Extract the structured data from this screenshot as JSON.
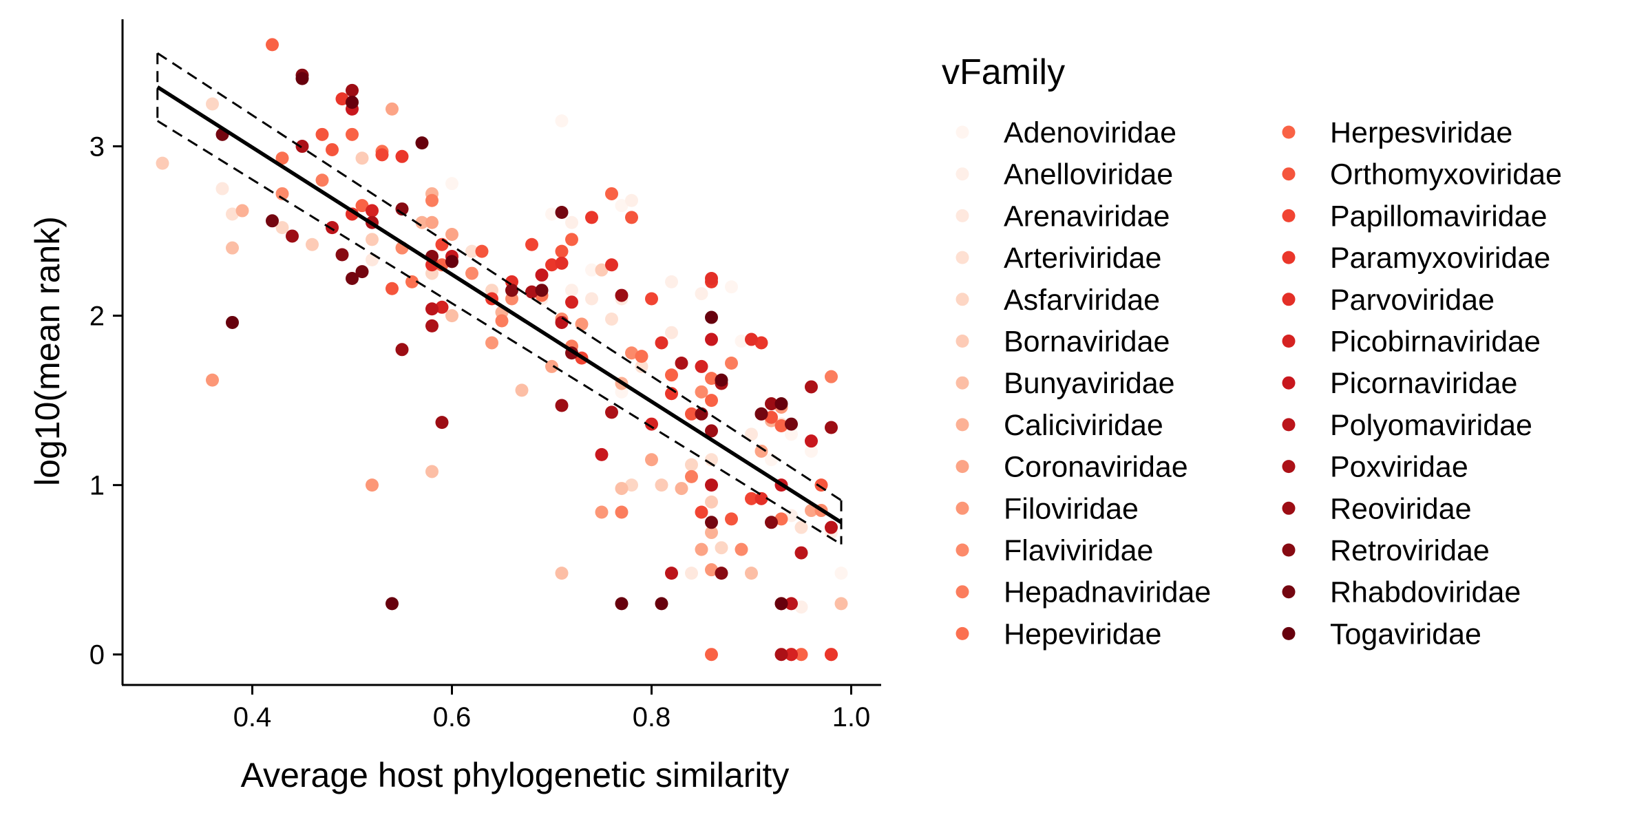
{
  "chart_data": {
    "type": "scatter",
    "xlabel": "Average host phylogenetic similarity",
    "ylabel": "log10(mean rank)",
    "xlim": [
      0.27,
      1.03
    ],
    "ylim": [
      -0.18,
      3.75
    ],
    "x_ticks": [
      "0.4",
      "0.6",
      "0.8",
      "1.0"
    ],
    "x_tick_values": [
      0.4,
      0.6,
      0.8,
      1.0
    ],
    "y_ticks": [
      "0",
      "1",
      "2",
      "3"
    ],
    "y_tick_values": [
      0,
      1,
      2,
      3
    ],
    "grid": false,
    "legend_position": "right",
    "legend_title": "vFamily",
    "fit_line": {
      "x": [
        0.305,
        0.99
      ],
      "y": [
        3.35,
        0.78
      ],
      "color": "#000000"
    },
    "confidence_band": {
      "x": [
        0.305,
        0.99
      ],
      "upper": [
        3.55,
        0.91
      ],
      "lower": [
        3.15,
        0.65
      ],
      "style": "dashed"
    },
    "families": [
      {
        "name": "Adenoviridae",
        "color": "#fff5f0"
      },
      {
        "name": "Anelloviridae",
        "color": "#feefe8"
      },
      {
        "name": "Arenaviridae",
        "color": "#fee8de"
      },
      {
        "name": "Arteriviridae",
        "color": "#fee0d2"
      },
      {
        "name": "Asfarviridae",
        "color": "#fdd6c4"
      },
      {
        "name": "Bornaviridae",
        "color": "#fdcbb6"
      },
      {
        "name": "Bunyaviridae",
        "color": "#fcbea5"
      },
      {
        "name": "Caliciviridae",
        "color": "#fcb195"
      },
      {
        "name": "Coronaviridae",
        "color": "#fca486"
      },
      {
        "name": "Filoviridae",
        "color": "#fc9777"
      },
      {
        "name": "Flaviviridae",
        "color": "#fc8a6a"
      },
      {
        "name": "Hepadnaviridae",
        "color": "#fb7d5d"
      },
      {
        "name": "Hepeviridae",
        "color": "#fb7050"
      },
      {
        "name": "Herpesviridae",
        "color": "#f96245"
      },
      {
        "name": "Orthomyxoviridae",
        "color": "#f5553c"
      },
      {
        "name": "Papillomaviridae",
        "color": "#f14432"
      },
      {
        "name": "Paramyxoviridae",
        "color": "#ea362a"
      },
      {
        "name": "Parvoviridae",
        "color": "#e32f27"
      },
      {
        "name": "Picobirnaviridae",
        "color": "#d52221"
      },
      {
        "name": "Picornaviridae",
        "color": "#c8171d"
      },
      {
        "name": "Polyomaviridae",
        "color": "#bb141a"
      },
      {
        "name": "Poxviridae",
        "color": "#ac1117"
      },
      {
        "name": "Reoviridae",
        "color": "#9c0d14"
      },
      {
        "name": "Retroviridae",
        "color": "#870a12"
      },
      {
        "name": "Rhabdoviridae",
        "color": "#740610"
      },
      {
        "name": "Togaviridae",
        "color": "#67000d"
      }
    ],
    "series": [
      {
        "name": "Adenoviridae",
        "points": [
          [
            0.71,
            3.15
          ],
          [
            0.7,
            2.6
          ],
          [
            0.77,
            2.65
          ],
          [
            0.74,
            2.27
          ],
          [
            0.88,
            2.17
          ],
          [
            0.77,
            1.55
          ],
          [
            0.89,
            1.85
          ],
          [
            0.94,
            1.3
          ],
          [
            0.96,
            1.2
          ],
          [
            0.99,
            0.48
          ],
          [
            0.6,
            2.78
          ],
          [
            0.92,
            1.15
          ]
        ]
      },
      {
        "name": "Anelloviridae",
        "points": [
          [
            0.78,
            2.68
          ],
          [
            0.72,
            2.15
          ],
          [
            0.82,
            2.2
          ],
          [
            0.85,
            2.13
          ],
          [
            0.94,
            0.82
          ],
          [
            0.95,
            0.28
          ],
          [
            0.98,
            0.72
          ],
          [
            0.69,
            2.1
          ],
          [
            0.72,
            2.55
          ]
        ]
      },
      {
        "name": "Arenaviridae",
        "points": [
          [
            0.37,
            2.75
          ],
          [
            0.52,
            2.33
          ],
          [
            0.74,
            2.1
          ],
          [
            0.82,
            1.9
          ],
          [
            0.9,
            1.3
          ],
          [
            0.94,
            0.3
          ],
          [
            0.84,
            0.48
          ],
          [
            0.77,
            2.1
          ]
        ]
      },
      {
        "name": "Arteriviridae",
        "points": [
          [
            0.38,
            2.6
          ],
          [
            0.59,
            2.42
          ],
          [
            0.62,
            2.38
          ],
          [
            0.79,
            1.7
          ],
          [
            0.86,
            1.15
          ],
          [
            0.93,
            1.36
          ],
          [
            0.76,
            1.98
          ],
          [
            0.95,
            0.75
          ]
        ]
      },
      {
        "name": "Asfarviridae",
        "points": [
          [
            0.36,
            3.25
          ],
          [
            0.43,
            2.52
          ],
          [
            0.58,
            2.25
          ],
          [
            0.64,
            2.15
          ],
          [
            0.78,
            1.0
          ],
          [
            0.84,
            1.12
          ],
          [
            0.87,
            0.63
          ]
        ]
      },
      {
        "name": "Bornaviridae",
        "points": [
          [
            0.31,
            2.9
          ],
          [
            0.51,
            2.93
          ],
          [
            0.46,
            2.42
          ],
          [
            0.52,
            2.45
          ],
          [
            0.75,
            2.27
          ],
          [
            0.81,
            1.0
          ],
          [
            0.86,
            0.9
          ],
          [
            0.95,
            0.0
          ]
        ]
      },
      {
        "name": "Bunyaviridae",
        "points": [
          [
            0.38,
            2.4
          ],
          [
            0.58,
            1.08
          ],
          [
            0.6,
            2.0
          ],
          [
            0.71,
            0.48
          ],
          [
            0.77,
            0.98
          ],
          [
            0.9,
            0.48
          ],
          [
            0.99,
            0.3
          ],
          [
            0.67,
            1.56
          ]
        ]
      },
      {
        "name": "Caliciviridae",
        "points": [
          [
            0.39,
            2.62
          ],
          [
            0.57,
            2.55
          ],
          [
            0.58,
            2.72
          ],
          [
            0.65,
            2.02
          ],
          [
            0.77,
            1.6
          ],
          [
            0.83,
            0.98
          ],
          [
            0.86,
            0.72
          ],
          [
            0.92,
            1.38
          ]
        ]
      },
      {
        "name": "Coronaviridae",
        "points": [
          [
            0.54,
            3.22
          ],
          [
            0.58,
            2.55
          ],
          [
            0.6,
            2.48
          ],
          [
            0.7,
            1.7
          ],
          [
            0.8,
            1.15
          ],
          [
            0.85,
            0.62
          ],
          [
            0.91,
            1.2
          ],
          [
            0.96,
            0.85
          ]
        ]
      },
      {
        "name": "Filoviridae",
        "points": [
          [
            0.36,
            1.62
          ],
          [
            0.52,
            1.0
          ],
          [
            0.64,
            1.84
          ],
          [
            0.73,
            1.95
          ],
          [
            0.75,
            0.84
          ],
          [
            0.86,
            0.5
          ],
          [
            0.93,
            1.46
          ]
        ]
      },
      {
        "name": "Flaviviridae",
        "points": [
          [
            0.43,
            2.72
          ],
          [
            0.48,
            2.52
          ],
          [
            0.55,
            2.4
          ],
          [
            0.62,
            2.25
          ],
          [
            0.71,
            1.98
          ],
          [
            0.78,
            1.78
          ],
          [
            0.85,
            1.55
          ],
          [
            0.89,
            0.62
          ],
          [
            0.97,
            0.85
          ],
          [
            0.66,
            2.1
          ]
        ]
      },
      {
        "name": "Hepadnaviridae",
        "points": [
          [
            0.47,
            2.8
          ],
          [
            0.58,
            2.68
          ],
          [
            0.65,
            1.97
          ],
          [
            0.72,
            1.82
          ],
          [
            0.77,
            0.84
          ],
          [
            0.84,
            1.05
          ],
          [
            0.88,
            1.72
          ],
          [
            0.98,
            1.64
          ]
        ]
      },
      {
        "name": "Hepeviridae",
        "points": [
          [
            0.43,
            2.93
          ],
          [
            0.5,
            2.6
          ],
          [
            0.53,
            2.97
          ],
          [
            0.56,
            2.2
          ],
          [
            0.69,
            2.12
          ],
          [
            0.79,
            1.76
          ],
          [
            0.86,
            1.63
          ],
          [
            0.93,
            0.8
          ],
          [
            0.98,
            0.0
          ]
        ]
      },
      {
        "name": "Herpesviridae",
        "points": [
          [
            0.42,
            3.6
          ],
          [
            0.5,
            3.07
          ],
          [
            0.51,
            2.65
          ],
          [
            0.59,
            2.3
          ],
          [
            0.72,
            2.45
          ],
          [
            0.76,
            2.72
          ],
          [
            0.82,
            1.65
          ],
          [
            0.86,
            1.5
          ],
          [
            0.93,
            1.35
          ],
          [
            0.86,
            0.0
          ],
          [
            0.95,
            0.0
          ]
        ]
      },
      {
        "name": "Orthomyxoviridae",
        "points": [
          [
            0.47,
            3.07
          ],
          [
            0.48,
            2.98
          ],
          [
            0.54,
            2.16
          ],
          [
            0.63,
            2.38
          ],
          [
            0.71,
            2.38
          ],
          [
            0.78,
            2.58
          ],
          [
            0.84,
            1.42
          ],
          [
            0.88,
            0.8
          ],
          [
            0.92,
            1.4
          ],
          [
            0.97,
            1.0
          ]
        ]
      },
      {
        "name": "Papillomaviridae",
        "points": [
          [
            0.53,
            2.95
          ],
          [
            0.59,
            2.42
          ],
          [
            0.68,
            2.42
          ],
          [
            0.73,
            1.75
          ],
          [
            0.8,
            2.1
          ],
          [
            0.85,
            0.84
          ],
          [
            0.9,
            0.92
          ],
          [
            0.94,
            0.0
          ]
        ]
      },
      {
        "name": "Paramyxoviridae",
        "points": [
          [
            0.49,
            3.28
          ],
          [
            0.55,
            2.94
          ],
          [
            0.64,
            2.1
          ],
          [
            0.7,
            2.3
          ],
          [
            0.74,
            2.58
          ],
          [
            0.82,
            1.54
          ],
          [
            0.86,
            2.2
          ],
          [
            0.91,
            1.84
          ],
          [
            0.98,
            0.0
          ]
        ]
      },
      {
        "name": "Parvoviridae",
        "points": [
          [
            0.5,
            2.6
          ],
          [
            0.58,
            2.3
          ],
          [
            0.66,
            2.2
          ],
          [
            0.71,
            2.31
          ],
          [
            0.76,
            2.3
          ],
          [
            0.81,
            1.84
          ],
          [
            0.86,
            2.22
          ],
          [
            0.9,
            1.86
          ],
          [
            0.91,
            0.92
          ]
        ]
      },
      {
        "name": "Picobirnaviridae",
        "points": [
          [
            0.52,
            2.62
          ],
          [
            0.59,
            2.05
          ],
          [
            0.72,
            2.08
          ],
          [
            0.8,
            1.36
          ],
          [
            0.85,
            1.7
          ],
          [
            0.93,
            0.3
          ],
          [
            0.94,
            0.0
          ]
        ]
      },
      {
        "name": "Picornaviridae",
        "points": [
          [
            0.5,
            3.22
          ],
          [
            0.6,
            2.35
          ],
          [
            0.69,
            2.24
          ],
          [
            0.75,
            1.18
          ],
          [
            0.86,
            1.86
          ],
          [
            0.91,
            1.42
          ],
          [
            0.96,
            1.26
          ],
          [
            0.93,
            1.0
          ]
        ]
      },
      {
        "name": "Polyomaviridae",
        "points": [
          [
            0.48,
            2.52
          ],
          [
            0.58,
            2.04
          ],
          [
            0.71,
            1.96
          ],
          [
            0.82,
            0.48
          ],
          [
            0.86,
            1.0
          ],
          [
            0.95,
            0.6
          ],
          [
            0.98,
            0.75
          ],
          [
            0.94,
            0.3
          ]
        ]
      },
      {
        "name": "Poxviridae",
        "points": [
          [
            0.45,
            3.0
          ],
          [
            0.52,
            2.55
          ],
          [
            0.58,
            1.94
          ],
          [
            0.68,
            2.14
          ],
          [
            0.76,
            1.43
          ],
          [
            0.83,
            1.72
          ],
          [
            0.87,
            1.6
          ],
          [
            0.93,
            0.0
          ],
          [
            0.96,
            1.58
          ]
        ]
      },
      {
        "name": "Reoviridae",
        "points": [
          [
            0.44,
            2.47
          ],
          [
            0.5,
            3.33
          ],
          [
            0.55,
            1.8
          ],
          [
            0.59,
            1.37
          ],
          [
            0.71,
            1.47
          ],
          [
            0.77,
            2.12
          ],
          [
            0.86,
            1.32
          ],
          [
            0.92,
            1.48
          ],
          [
            0.98,
            1.34
          ]
        ]
      },
      {
        "name": "Retroviridae",
        "points": [
          [
            0.45,
            3.42
          ],
          [
            0.49,
            2.36
          ],
          [
            0.55,
            2.63
          ],
          [
            0.58,
            2.35
          ],
          [
            0.66,
            2.15
          ],
          [
            0.72,
            1.78
          ],
          [
            0.85,
            1.42
          ],
          [
            0.87,
            0.48
          ],
          [
            0.92,
            0.78
          ]
        ]
      },
      {
        "name": "Rhabdoviridae",
        "points": [
          [
            0.37,
            3.07
          ],
          [
            0.42,
            2.56
          ],
          [
            0.5,
            2.22
          ],
          [
            0.51,
            2.26
          ],
          [
            0.69,
            2.15
          ],
          [
            0.71,
            2.61
          ],
          [
            0.86,
            0.78
          ],
          [
            0.91,
            1.42
          ],
          [
            0.94,
            1.36
          ]
        ]
      },
      {
        "name": "Togaviridae",
        "points": [
          [
            0.38,
            1.96
          ],
          [
            0.45,
            3.4
          ],
          [
            0.5,
            3.26
          ],
          [
            0.54,
            0.3
          ],
          [
            0.57,
            3.02
          ],
          [
            0.6,
            2.32
          ],
          [
            0.77,
            0.3
          ],
          [
            0.81,
            0.3
          ],
          [
            0.86,
            1.99
          ],
          [
            0.87,
            1.62
          ],
          [
            0.93,
            1.48
          ],
          [
            0.93,
            0.3
          ]
        ]
      }
    ]
  }
}
